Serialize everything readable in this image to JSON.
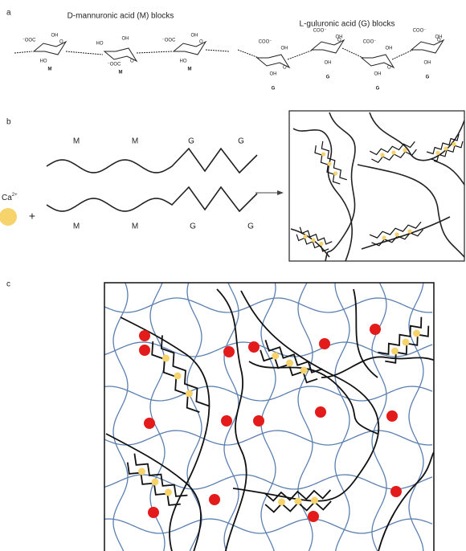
{
  "panel_a": {
    "label": "a",
    "m_title": "D-mannuronic acid (M) blocks",
    "g_title": "L-guluronic acid (G) blocks",
    "m_units": [
      {
        "unit": "M",
        "ring_atom": "O",
        "groups": [
          "⁻OOC",
          "OH",
          "HO"
        ]
      },
      {
        "unit": "M",
        "ring_atom": "O",
        "groups": [
          "HO",
          "OH",
          "⁻OOC"
        ]
      },
      {
        "unit": "M",
        "ring_atom": "O",
        "groups": [
          "⁻OOC",
          "OH",
          "HO"
        ]
      }
    ],
    "g_units": [
      {
        "unit": "G",
        "ring_atom": "O",
        "groups": [
          "COO⁻",
          "OH",
          "OH"
        ]
      },
      {
        "unit": "G",
        "ring_atom": "O",
        "groups": [
          "COO⁻",
          "OH",
          "OH"
        ]
      },
      {
        "unit": "G",
        "ring_atom": "O",
        "groups": [
          "COO⁻",
          "OH",
          "OH"
        ]
      },
      {
        "unit": "G",
        "ring_atom": "O",
        "groups": [
          "COO⁻",
          "OH",
          "OH"
        ]
      }
    ]
  },
  "panel_b": {
    "label": "b",
    "ion": {
      "symbol": "Ca",
      "charge": "2+"
    },
    "plus": "+",
    "top_labels": [
      "M",
      "M",
      "G",
      "G"
    ],
    "bottom_labels": [
      "M",
      "M",
      "G",
      "G"
    ]
  },
  "panel_c": {
    "label": "c"
  }
}
